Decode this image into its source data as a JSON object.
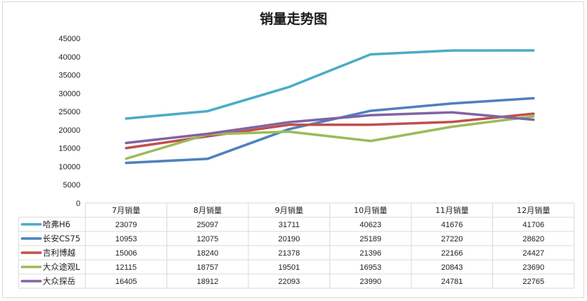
{
  "chart_data": {
    "type": "line",
    "title": "销量走势图",
    "categories": [
      "7月销量",
      "8月销量",
      "9月销量",
      "10月销量",
      "11月销量",
      "12月销量"
    ],
    "ylim": [
      0,
      45000
    ],
    "yticks": [
      0,
      5000,
      10000,
      15000,
      20000,
      25000,
      30000,
      35000,
      40000,
      45000
    ],
    "grid": false,
    "legend": "data-table",
    "series": [
      {
        "name": "哈弗H6",
        "color": "#4bacc6",
        "values": [
          23079,
          25097,
          31711,
          40623,
          41676,
          41706
        ]
      },
      {
        "name": "长安CS75",
        "color": "#4f81bd",
        "values": [
          10953,
          12075,
          20190,
          25189,
          27220,
          28620
        ]
      },
      {
        "name": "吉利博越",
        "color": "#c0504d",
        "values": [
          15006,
          18240,
          21378,
          21396,
          22166,
          24427
        ]
      },
      {
        "name": "大众途观L",
        "color": "#9bbb59",
        "values": [
          12115,
          18757,
          19501,
          16953,
          20843,
          23690
        ]
      },
      {
        "name": "大众探岳",
        "color": "#8064a2",
        "values": [
          16405,
          18912,
          22093,
          23990,
          24781,
          22765
        ]
      }
    ]
  }
}
